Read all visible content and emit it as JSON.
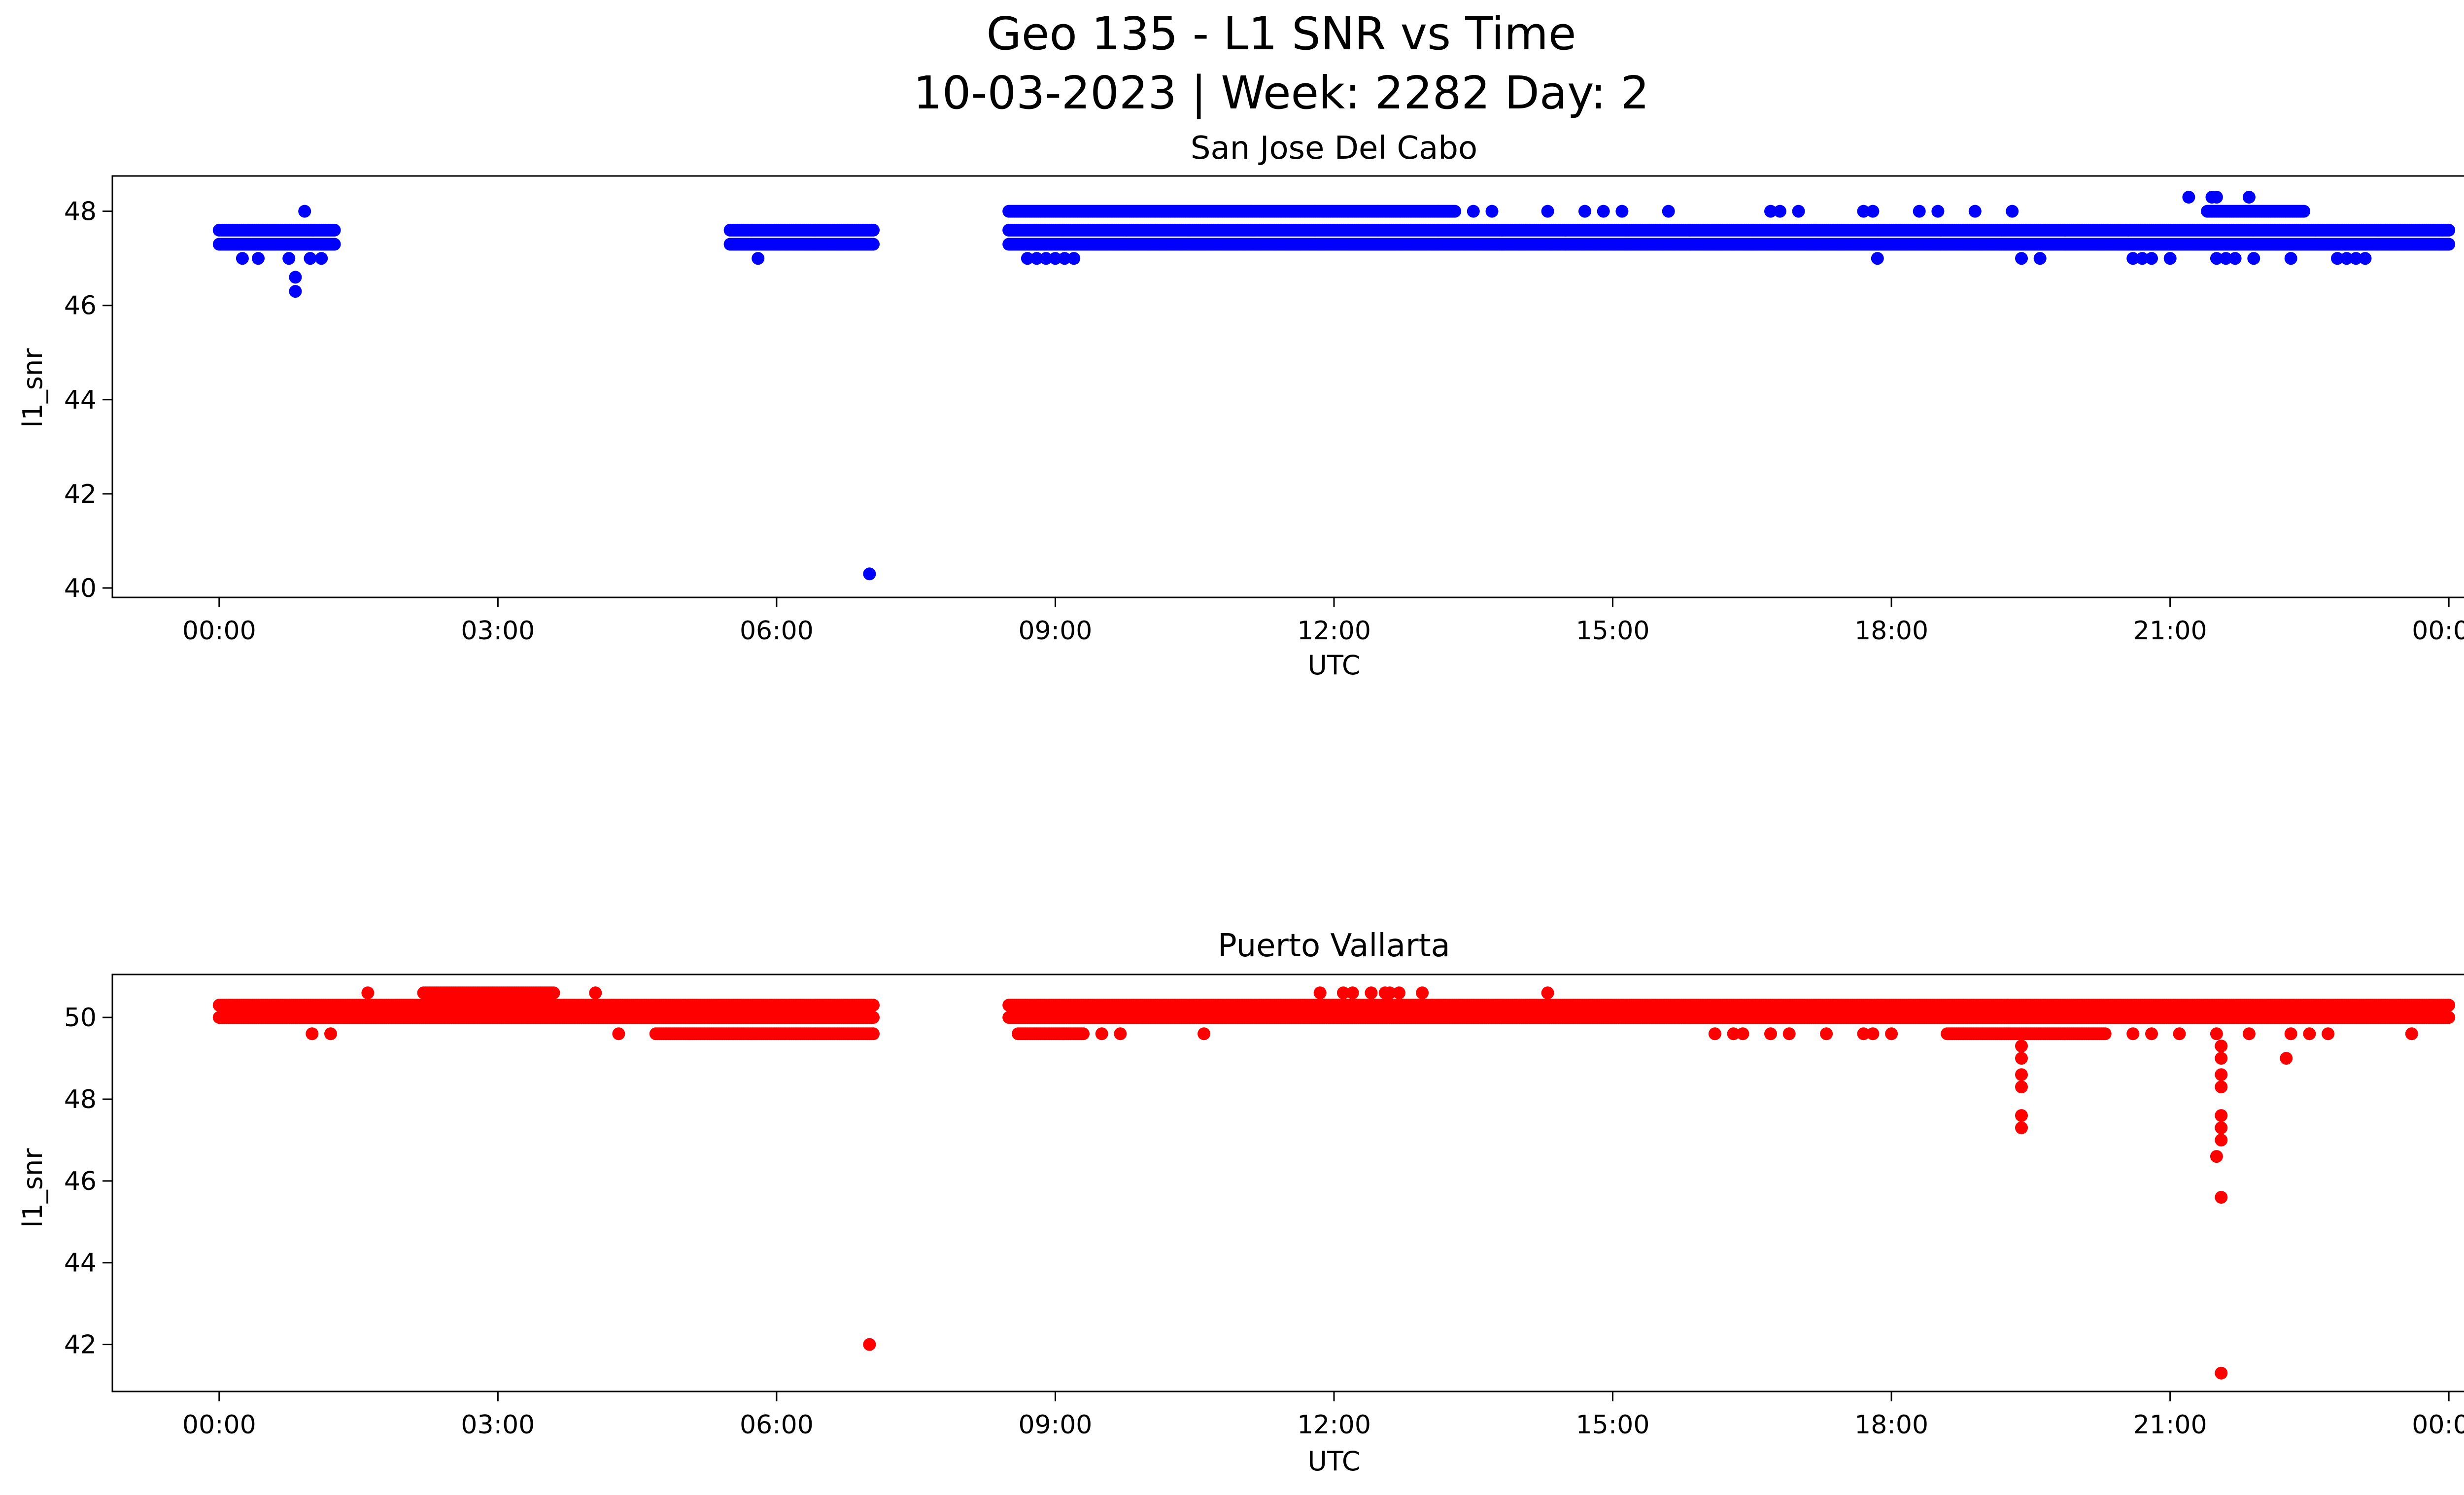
{
  "figure": {
    "title_line1": "Geo 135 - L1 SNR vs Time",
    "title_line2": "10-03-2023 | Week: 2282 Day: 2"
  },
  "chart_data": [
    {
      "type": "scatter",
      "title": "San Jose Del Cabo",
      "xlabel": "UTC",
      "ylabel": "l1_snr",
      "color": "#0000ff",
      "xlim_hours": [
        -1.15,
        25.15
      ],
      "ylim": [
        39.8,
        48.75
      ],
      "x_ticks": [
        {
          "hour": 0,
          "label": "00:00"
        },
        {
          "hour": 3,
          "label": "03:00"
        },
        {
          "hour": 6,
          "label": "06:00"
        },
        {
          "hour": 9,
          "label": "09:00"
        },
        {
          "hour": 12,
          "label": "12:00"
        },
        {
          "hour": 15,
          "label": "15:00"
        },
        {
          "hour": 18,
          "label": "18:00"
        },
        {
          "hour": 21,
          "label": "21:00"
        },
        {
          "hour": 24,
          "label": "00:00"
        }
      ],
      "y_ticks": [
        40,
        42,
        44,
        46,
        48
      ],
      "bands": [
        {
          "start": 0.0,
          "end": 1.25,
          "values": [
            47.3,
            47.6
          ]
        },
        {
          "start": 5.5,
          "end": 7.05,
          "values": [
            47.3,
            47.6
          ]
        },
        {
          "start": 8.5,
          "end": 24.0,
          "values": [
            47.3,
            47.6
          ]
        },
        {
          "start": 8.5,
          "end": 13.3,
          "values": [
            48.0
          ]
        },
        {
          "start": 21.4,
          "end": 22.45,
          "values": [
            48.0
          ]
        }
      ],
      "points": [
        {
          "x": 0.25,
          "y": 47.0
        },
        {
          "x": 0.42,
          "y": 47.0
        },
        {
          "x": 0.75,
          "y": 47.0
        },
        {
          "x": 0.82,
          "y": 46.6
        },
        {
          "x": 0.82,
          "y": 46.3
        },
        {
          "x": 0.92,
          "y": 48.0
        },
        {
          "x": 0.98,
          "y": 47.0
        },
        {
          "x": 1.1,
          "y": 47.0
        },
        {
          "x": 5.8,
          "y": 47.0
        },
        {
          "x": 7.0,
          "y": 40.3
        },
        {
          "x": 8.7,
          "y": 47.0
        },
        {
          "x": 8.8,
          "y": 47.0
        },
        {
          "x": 8.9,
          "y": 47.0
        },
        {
          "x": 9.0,
          "y": 47.0
        },
        {
          "x": 9.1,
          "y": 47.0
        },
        {
          "x": 9.2,
          "y": 47.0
        },
        {
          "x": 13.5,
          "y": 48.0
        },
        {
          "x": 13.7,
          "y": 48.0
        },
        {
          "x": 14.3,
          "y": 48.0
        },
        {
          "x": 14.7,
          "y": 48.0
        },
        {
          "x": 14.9,
          "y": 48.0
        },
        {
          "x": 15.1,
          "y": 48.0
        },
        {
          "x": 15.6,
          "y": 48.0
        },
        {
          "x": 16.7,
          "y": 48.0
        },
        {
          "x": 16.8,
          "y": 48.0
        },
        {
          "x": 17.0,
          "y": 48.0
        },
        {
          "x": 17.7,
          "y": 48.0
        },
        {
          "x": 17.8,
          "y": 48.0
        },
        {
          "x": 18.3,
          "y": 48.0
        },
        {
          "x": 18.5,
          "y": 48.0
        },
        {
          "x": 18.9,
          "y": 48.0
        },
        {
          "x": 19.3,
          "y": 48.0
        },
        {
          "x": 17.85,
          "y": 47.0
        },
        {
          "x": 19.4,
          "y": 47.0
        },
        {
          "x": 19.6,
          "y": 47.0
        },
        {
          "x": 20.6,
          "y": 47.0
        },
        {
          "x": 20.7,
          "y": 47.0
        },
        {
          "x": 20.8,
          "y": 47.0
        },
        {
          "x": 21.0,
          "y": 47.0
        },
        {
          "x": 21.2,
          "y": 48.3
        },
        {
          "x": 21.45,
          "y": 48.3
        },
        {
          "x": 21.5,
          "y": 48.3
        },
        {
          "x": 21.85,
          "y": 48.3
        },
        {
          "x": 21.5,
          "y": 47.0
        },
        {
          "x": 21.6,
          "y": 47.0
        },
        {
          "x": 21.7,
          "y": 47.0
        },
        {
          "x": 21.9,
          "y": 47.0
        },
        {
          "x": 22.3,
          "y": 47.0
        },
        {
          "x": 22.8,
          "y": 47.0
        },
        {
          "x": 22.9,
          "y": 47.0
        },
        {
          "x": 23.0,
          "y": 47.0
        },
        {
          "x": 23.1,
          "y": 47.0
        }
      ]
    },
    {
      "type": "scatter",
      "title": "Puerto Vallarta",
      "xlabel": "UTC",
      "ylabel": "l1_snr",
      "color": "#ff0000",
      "xlim_hours": [
        -1.15,
        25.15
      ],
      "ylim": [
        40.85,
        51.05
      ],
      "x_ticks": [
        {
          "hour": 0,
          "label": "00:00"
        },
        {
          "hour": 3,
          "label": "03:00"
        },
        {
          "hour": 6,
          "label": "06:00"
        },
        {
          "hour": 9,
          "label": "09:00"
        },
        {
          "hour": 12,
          "label": "12:00"
        },
        {
          "hour": 15,
          "label": "15:00"
        },
        {
          "hour": 18,
          "label": "18:00"
        },
        {
          "hour": 21,
          "label": "21:00"
        },
        {
          "hour": 24,
          "label": "00:00"
        }
      ],
      "y_ticks": [
        42,
        44,
        46,
        48,
        50
      ],
      "bands": [
        {
          "start": 0.0,
          "end": 7.05,
          "values": [
            50.0,
            50.3
          ]
        },
        {
          "start": 8.5,
          "end": 24.0,
          "values": [
            50.0,
            50.3
          ]
        },
        {
          "start": 2.2,
          "end": 3.6,
          "values": [
            50.6
          ]
        },
        {
          "start": 4.7,
          "end": 7.05,
          "values": [
            49.6
          ]
        },
        {
          "start": 8.6,
          "end": 9.3,
          "values": [
            49.6
          ]
        },
        {
          "start": 18.6,
          "end": 20.3,
          "values": [
            49.6
          ]
        }
      ],
      "points": [
        {
          "x": 1.0,
          "y": 49.6
        },
        {
          "x": 1.2,
          "y": 49.6
        },
        {
          "x": 1.6,
          "y": 50.6
        },
        {
          "x": 4.05,
          "y": 50.6
        },
        {
          "x": 4.3,
          "y": 49.6
        },
        {
          "x": 7.0,
          "y": 42.0
        },
        {
          "x": 9.5,
          "y": 49.6
        },
        {
          "x": 9.7,
          "y": 49.6
        },
        {
          "x": 10.6,
          "y": 49.6
        },
        {
          "x": 11.85,
          "y": 50.6
        },
        {
          "x": 12.1,
          "y": 50.6
        },
        {
          "x": 12.2,
          "y": 50.6
        },
        {
          "x": 12.4,
          "y": 50.6
        },
        {
          "x": 12.55,
          "y": 50.6
        },
        {
          "x": 12.6,
          "y": 50.6
        },
        {
          "x": 12.7,
          "y": 50.6
        },
        {
          "x": 12.95,
          "y": 50.6
        },
        {
          "x": 14.3,
          "y": 50.6
        },
        {
          "x": 16.1,
          "y": 49.6
        },
        {
          "x": 16.3,
          "y": 49.6
        },
        {
          "x": 16.4,
          "y": 49.6
        },
        {
          "x": 16.7,
          "y": 49.6
        },
        {
          "x": 16.9,
          "y": 49.6
        },
        {
          "x": 17.3,
          "y": 49.6
        },
        {
          "x": 17.7,
          "y": 49.6
        },
        {
          "x": 17.8,
          "y": 49.6
        },
        {
          "x": 18.0,
          "y": 49.6
        },
        {
          "x": 19.25,
          "y": 50.3
        },
        {
          "x": 19.4,
          "y": 49.3
        },
        {
          "x": 19.4,
          "y": 49.0
        },
        {
          "x": 19.4,
          "y": 48.6
        },
        {
          "x": 19.4,
          "y": 48.3
        },
        {
          "x": 19.4,
          "y": 47.6
        },
        {
          "x": 19.4,
          "y": 47.3
        },
        {
          "x": 20.6,
          "y": 49.6
        },
        {
          "x": 20.8,
          "y": 49.6
        },
        {
          "x": 21.1,
          "y": 49.6
        },
        {
          "x": 21.5,
          "y": 49.6
        },
        {
          "x": 21.55,
          "y": 49.3
        },
        {
          "x": 21.55,
          "y": 49.0
        },
        {
          "x": 21.55,
          "y": 48.6
        },
        {
          "x": 21.55,
          "y": 48.3
        },
        {
          "x": 21.55,
          "y": 47.6
        },
        {
          "x": 21.55,
          "y": 47.3
        },
        {
          "x": 21.55,
          "y": 47.0
        },
        {
          "x": 21.5,
          "y": 46.6
        },
        {
          "x": 21.55,
          "y": 45.6
        },
        {
          "x": 21.55,
          "y": 41.3
        },
        {
          "x": 21.85,
          "y": 49.6
        },
        {
          "x": 22.3,
          "y": 49.6
        },
        {
          "x": 22.25,
          "y": 49.0
        },
        {
          "x": 22.5,
          "y": 49.6
        },
        {
          "x": 22.7,
          "y": 49.6
        },
        {
          "x": 23.6,
          "y": 49.6
        }
      ]
    }
  ]
}
